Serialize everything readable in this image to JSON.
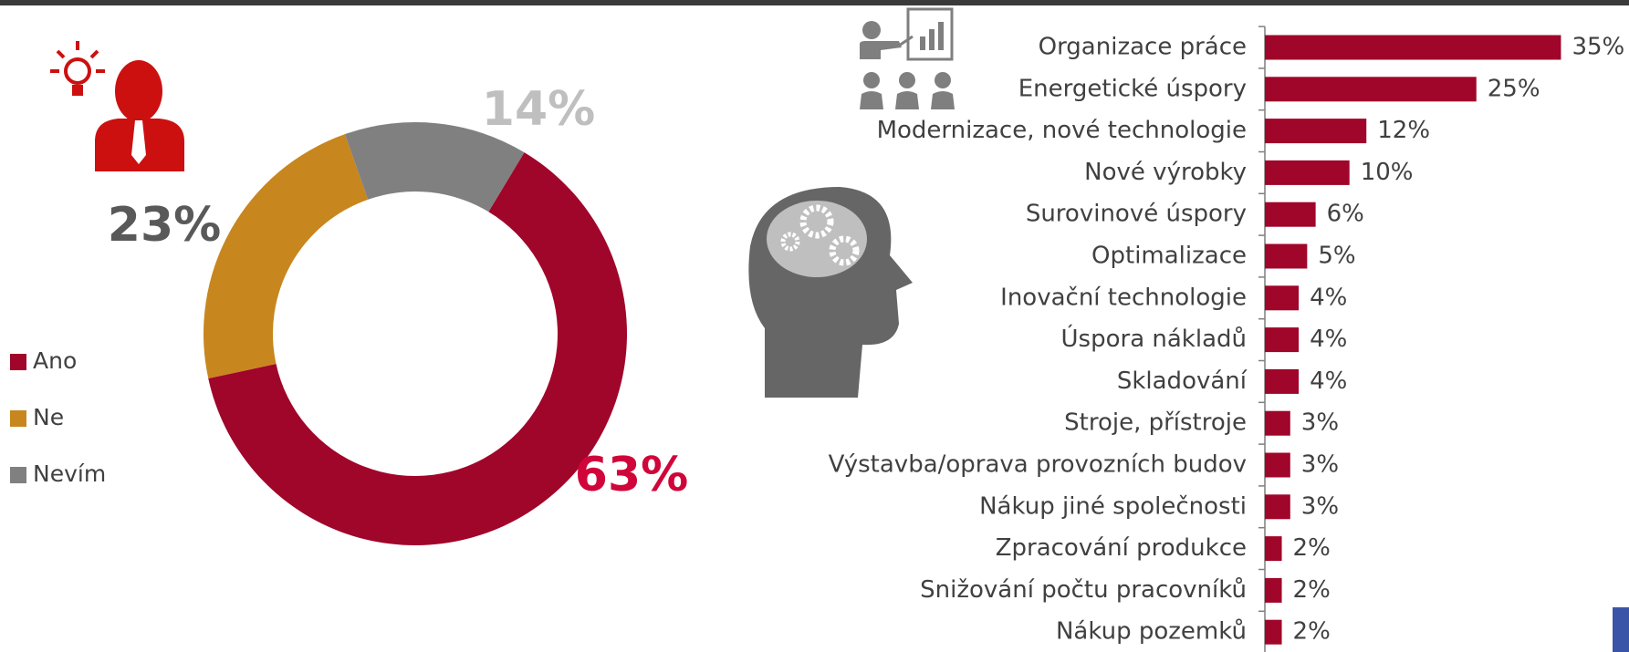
{
  "chart_data": [
    {
      "type": "donut",
      "categories": [
        "Ano",
        "Ne",
        "Nevím"
      ],
      "values": [
        63,
        23,
        14
      ],
      "value_labels": [
        "63%",
        "23%",
        "14%"
      ],
      "colors": [
        "#a0052a",
        "#c8861f",
        "#808080"
      ],
      "label_colors": [
        "#d0063a",
        "#595959",
        "#bfbfbf"
      ],
      "legend": "left"
    },
    {
      "type": "hbar",
      "categories": [
        "Organizace práce",
        "Energetické úspory",
        "Modernizace, nové technologie",
        "Nové výrobky",
        "Surovinové úspory",
        "Optimalizace",
        "Inovační technologie",
        "Úspora nákladů",
        "Skladování",
        "Stroje, přístroje",
        "Výstavba/oprava provozních budov",
        "Nákup jiné společnosti",
        "Zpracování produkce",
        "Snižování počtu pracovníků",
        "Nákup pozemků"
      ],
      "values": [
        35,
        25,
        12,
        10,
        6,
        5,
        4,
        4,
        4,
        3,
        3,
        3,
        2,
        2,
        2
      ],
      "value_labels": [
        "35%",
        "25%",
        "12%",
        "10%",
        "6%",
        "5%",
        "4%",
        "4%",
        "4%",
        "3%",
        "3%",
        "3%",
        "2%",
        "2%",
        "2%"
      ],
      "color": "#a0052a"
    }
  ]
}
